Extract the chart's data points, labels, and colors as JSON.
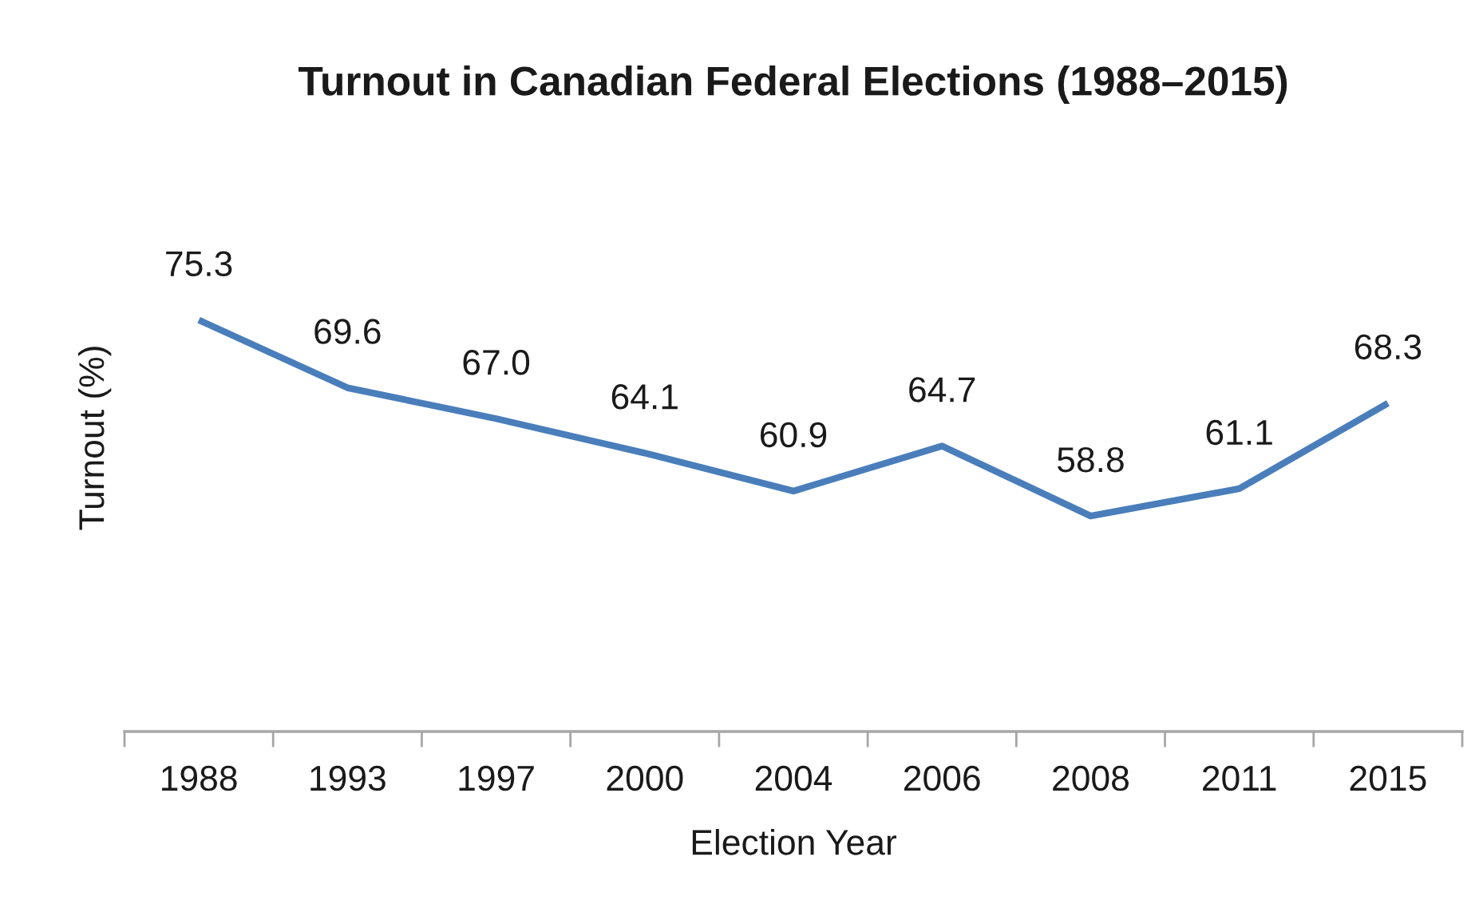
{
  "chart_data": {
    "type": "line",
    "title": "Turnout in Canadian Federal Elections (1988–2015)",
    "xlabel": "Election Year",
    "ylabel": "Turnout (%)",
    "categories": [
      "1988",
      "1993",
      "1997",
      "2000",
      "2004",
      "2006",
      "2008",
      "2011",
      "2015"
    ],
    "series": [
      {
        "color": "#4a7ebb",
        "values": [
          75.3,
          69.6,
          67.0,
          64.1,
          60.9,
          64.7,
          58.8,
          61.1,
          68.3
        ],
        "value_labels": [
          "75.3",
          "69.6",
          "67.0",
          "64.1",
          "60.9",
          "64.7",
          "58.8",
          "61.1",
          "68.3"
        ]
      }
    ]
  }
}
